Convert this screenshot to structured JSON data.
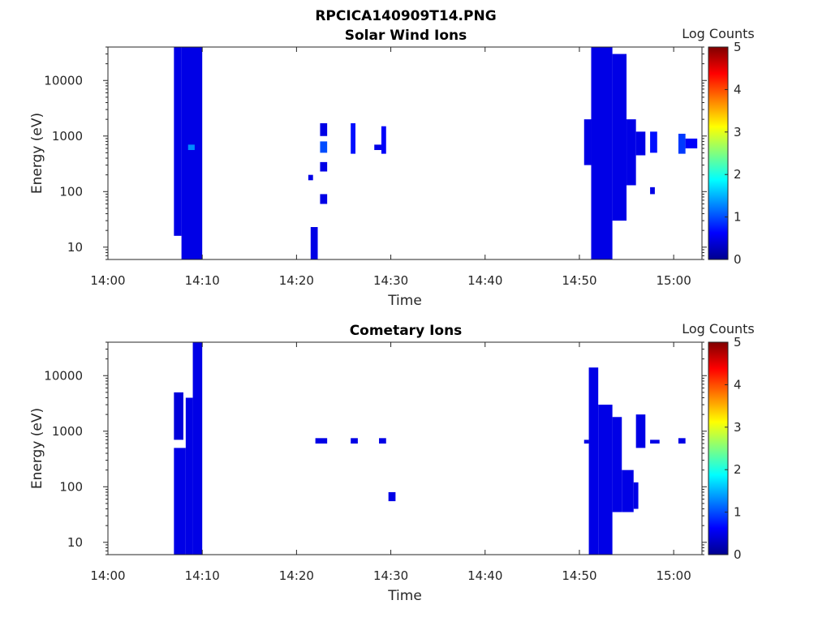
{
  "figure_title": "RPCICA140909T14.PNG",
  "chart_data": [
    {
      "type": "heatmap",
      "title": "Solar Wind Ions",
      "xlabel": "Time",
      "ylabel": "Energy (eV)",
      "x_range": [
        "14:00",
        "15:03"
      ],
      "x_ticks": [
        "14:00",
        "14:10",
        "14:20",
        "14:30",
        "14:40",
        "14:50",
        "15:00"
      ],
      "y_scale": "log",
      "y_range": [
        6,
        40000
      ],
      "y_ticks": [
        "10",
        "100",
        "1000",
        "10000"
      ],
      "colorbar": {
        "label": "Log Counts",
        "range": [
          0,
          5
        ],
        "ticks": [
          "0",
          "1",
          "2",
          "3",
          "4",
          "5"
        ],
        "colormap": "jet"
      },
      "grid": false,
      "cells": [
        {
          "t0": "14:07:00",
          "t1": "14:07:48",
          "e0": 16,
          "e1": 40000,
          "v": 0.2
        },
        {
          "t0": "14:07:48",
          "t1": "14:10:00",
          "e0": 6,
          "e1": 40000,
          "v": 0.2
        },
        {
          "t0": "14:08:30",
          "t1": "14:09:12",
          "e0": 560,
          "e1": 700,
          "v": 1.0
        },
        {
          "t0": "14:21:30",
          "t1": "14:22:15",
          "e0": 6,
          "e1": 23,
          "v": 0.2
        },
        {
          "t0": "14:21:15",
          "t1": "14:21:45",
          "e0": 160,
          "e1": 200,
          "v": 0.2
        },
        {
          "t0": "14:22:30",
          "t1": "14:23:15",
          "e0": 1000,
          "e1": 1700,
          "v": 0.2
        },
        {
          "t0": "14:22:30",
          "t1": "14:23:15",
          "e0": 500,
          "e1": 800,
          "v": 0.7
        },
        {
          "t0": "14:22:30",
          "t1": "14:23:15",
          "e0": 230,
          "e1": 340,
          "v": 0.2
        },
        {
          "t0": "14:22:30",
          "t1": "14:23:15",
          "e0": 60,
          "e1": 90,
          "v": 0.2
        },
        {
          "t0": "14:25:45",
          "t1": "14:26:15",
          "e0": 480,
          "e1": 1700,
          "v": 0.4
        },
        {
          "t0": "14:29:00",
          "t1": "14:29:30",
          "e0": 480,
          "e1": 1500,
          "v": 0.3
        },
        {
          "t0": "14:28:15",
          "t1": "14:29:00",
          "e0": 560,
          "e1": 700,
          "v": 0.2
        },
        {
          "t0": "14:50:30",
          "t1": "14:51:15",
          "e0": 300,
          "e1": 2000,
          "v": 0.2
        },
        {
          "t0": "14:51:15",
          "t1": "14:53:30",
          "e0": 6,
          "e1": 40000,
          "v": 0.2
        },
        {
          "t0": "14:53:30",
          "t1": "14:55:00",
          "e0": 30,
          "e1": 30000,
          "v": 0.2
        },
        {
          "t0": "14:55:00",
          "t1": "14:56:00",
          "e0": 130,
          "e1": 2000,
          "v": 0.2
        },
        {
          "t0": "14:56:00",
          "t1": "14:57:00",
          "e0": 450,
          "e1": 1200,
          "v": 0.2
        },
        {
          "t0": "14:57:30",
          "t1": "14:58:00",
          "e0": 90,
          "e1": 120,
          "v": 0.2
        },
        {
          "t0": "14:57:30",
          "t1": "14:58:15",
          "e0": 500,
          "e1": 1200,
          "v": 0.4
        },
        {
          "t0": "15:00:30",
          "t1": "15:01:15",
          "e0": 480,
          "e1": 1100,
          "v": 0.6
        },
        {
          "t0": "15:01:15",
          "t1": "15:02:30",
          "e0": 600,
          "e1": 900,
          "v": 0.3
        }
      ]
    },
    {
      "type": "heatmap",
      "title": "Cometary Ions",
      "xlabel": "Time",
      "ylabel": "Energy (eV)",
      "x_range": [
        "14:00",
        "15:03"
      ],
      "x_ticks": [
        "14:00",
        "14:10",
        "14:20",
        "14:30",
        "14:40",
        "14:50",
        "15:00"
      ],
      "y_scale": "log",
      "y_range": [
        6,
        40000
      ],
      "y_ticks": [
        "10",
        "100",
        "1000",
        "10000"
      ],
      "colorbar": {
        "label": "Log Counts",
        "range": [
          0,
          5
        ],
        "ticks": [
          "0",
          "1",
          "2",
          "3",
          "4",
          "5"
        ],
        "colormap": "jet"
      },
      "grid": false,
      "cells": [
        {
          "t0": "14:07:00",
          "t1": "14:08:15",
          "e0": 6,
          "e1": 500,
          "v": 0.2
        },
        {
          "t0": "14:07:00",
          "t1": "14:08:00",
          "e0": 700,
          "e1": 5000,
          "v": 0.15
        },
        {
          "t0": "14:08:15",
          "t1": "14:09:00",
          "e0": 6,
          "e1": 4000,
          "v": 0.2
        },
        {
          "t0": "14:09:00",
          "t1": "14:10:00",
          "e0": 6,
          "e1": 40000,
          "v": 0.2
        },
        {
          "t0": "14:22:00",
          "t1": "14:23:15",
          "e0": 600,
          "e1": 750,
          "v": 0.2
        },
        {
          "t0": "14:25:45",
          "t1": "14:26:30",
          "e0": 600,
          "e1": 750,
          "v": 0.2
        },
        {
          "t0": "14:28:45",
          "t1": "14:29:30",
          "e0": 600,
          "e1": 750,
          "v": 0.2
        },
        {
          "t0": "14:29:45",
          "t1": "14:30:30",
          "e0": 55,
          "e1": 80,
          "v": 0.2
        },
        {
          "t0": "14:50:30",
          "t1": "14:51:00",
          "e0": 600,
          "e1": 700,
          "v": 0.2
        },
        {
          "t0": "14:51:00",
          "t1": "14:52:00",
          "e0": 6,
          "e1": 14000,
          "v": 0.2
        },
        {
          "t0": "14:52:00",
          "t1": "14:53:30",
          "e0": 6,
          "e1": 3000,
          "v": 0.2
        },
        {
          "t0": "14:53:30",
          "t1": "14:54:30",
          "e0": 35,
          "e1": 1800,
          "v": 0.2
        },
        {
          "t0": "14:54:30",
          "t1": "14:55:45",
          "e0": 35,
          "e1": 200,
          "v": 0.2
        },
        {
          "t0": "14:55:45",
          "t1": "14:56:15",
          "e0": 40,
          "e1": 120,
          "v": 0.2
        },
        {
          "t0": "14:56:00",
          "t1": "14:57:00",
          "e0": 500,
          "e1": 2000,
          "v": 0.2
        },
        {
          "t0": "14:57:30",
          "t1": "14:58:30",
          "e0": 600,
          "e1": 700,
          "v": 0.2
        },
        {
          "t0": "15:00:30",
          "t1": "15:01:15",
          "e0": 600,
          "e1": 750,
          "v": 0.2
        }
      ]
    }
  ]
}
